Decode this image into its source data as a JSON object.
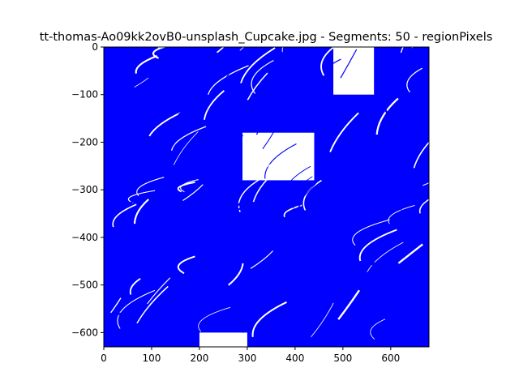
{
  "chart_data": {
    "type": "line",
    "title": "tt-thomas-Ao09kk2ovB0-unsplash_Cupcake.jpg - Segments: 50 - regionPixels",
    "xlabel": "",
    "ylabel": "",
    "xlim": [
      0,
      680
    ],
    "ylim": [
      -630,
      0
    ],
    "xticks": [
      0,
      100,
      200,
      300,
      400,
      500,
      600
    ],
    "yticks": [
      0,
      -100,
      -200,
      -300,
      -400,
      -500,
      -600
    ],
    "grid": false,
    "legend": "none",
    "series": [
      {
        "color": "#0000ff",
        "description_free_values": true
      }
    ],
    "stroke_color": "#0000ff",
    "background_color": "#ffffff",
    "gaps_data": [
      {
        "x": [
          480,
          565
        ],
        "y": [
          -100,
          0
        ]
      },
      {
        "x": [
          290,
          440
        ],
        "y": [
          -280,
          -180
        ]
      },
      {
        "x": [
          200,
          300
        ],
        "y": [
          -630,
          -600
        ]
      }
    ]
  }
}
